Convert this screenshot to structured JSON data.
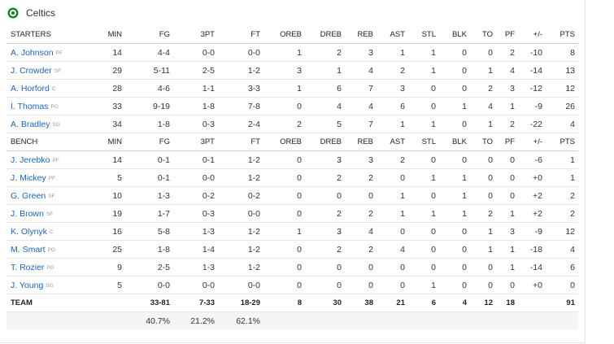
{
  "header": {
    "title": "Celtics"
  },
  "columns": [
    "MIN",
    "FG",
    "3PT",
    "FT",
    "OREB",
    "DREB",
    "REB",
    "AST",
    "STL",
    "BLK",
    "TO",
    "PF",
    "+/-",
    "PTS"
  ],
  "starters": {
    "label": "STARTERS",
    "rows": [
      {
        "name": "A. Johnson",
        "pos": "PF",
        "stats": [
          "14",
          "4-4",
          "0-0",
          "0-0",
          "1",
          "2",
          "3",
          "1",
          "1",
          "0",
          "0",
          "2",
          "-10",
          "8"
        ]
      },
      {
        "name": "J. Crowder",
        "pos": "SF",
        "stats": [
          "29",
          "5-11",
          "2-5",
          "1-2",
          "3",
          "1",
          "4",
          "2",
          "1",
          "0",
          "1",
          "4",
          "-14",
          "13"
        ]
      },
      {
        "name": "A. Horford",
        "pos": "C",
        "stats": [
          "28",
          "4-6",
          "1-1",
          "3-3",
          "1",
          "6",
          "7",
          "3",
          "0",
          "0",
          "2",
          "3",
          "-12",
          "12"
        ]
      },
      {
        "name": "I. Thomas",
        "pos": "PG",
        "stats": [
          "33",
          "9-19",
          "1-8",
          "7-8",
          "0",
          "4",
          "4",
          "6",
          "0",
          "1",
          "4",
          "1",
          "-9",
          "26"
        ]
      },
      {
        "name": "A. Bradley",
        "pos": "SG",
        "stats": [
          "34",
          "1-8",
          "0-3",
          "2-4",
          "2",
          "5",
          "7",
          "1",
          "1",
          "0",
          "1",
          "2",
          "-22",
          "4"
        ]
      }
    ]
  },
  "bench": {
    "label": "BENCH",
    "rows": [
      {
        "name": "J. Jerebko",
        "pos": "PF",
        "stats": [
          "14",
          "0-1",
          "0-1",
          "1-2",
          "0",
          "3",
          "3",
          "2",
          "0",
          "0",
          "0",
          "0",
          "-6",
          "1"
        ]
      },
      {
        "name": "J. Mickey",
        "pos": "PF",
        "stats": [
          "5",
          "0-1",
          "0-0",
          "1-2",
          "0",
          "2",
          "2",
          "0",
          "1",
          "1",
          "0",
          "0",
          "+0",
          "1"
        ]
      },
      {
        "name": "G. Green",
        "pos": "SF",
        "stats": [
          "10",
          "1-3",
          "0-2",
          "0-2",
          "0",
          "0",
          "0",
          "1",
          "0",
          "1",
          "0",
          "0",
          "+2",
          "2"
        ]
      },
      {
        "name": "J. Brown",
        "pos": "SF",
        "stats": [
          "19",
          "1-7",
          "0-3",
          "0-0",
          "0",
          "2",
          "2",
          "1",
          "1",
          "1",
          "2",
          "1",
          "+2",
          "2"
        ]
      },
      {
        "name": "K. Olynyk",
        "pos": "C",
        "stats": [
          "16",
          "5-8",
          "1-3",
          "1-2",
          "1",
          "3",
          "4",
          "0",
          "0",
          "0",
          "1",
          "3",
          "-9",
          "12"
        ]
      },
      {
        "name": "M. Smart",
        "pos": "PG",
        "stats": [
          "25",
          "1-8",
          "1-4",
          "1-2",
          "0",
          "2",
          "2",
          "4",
          "0",
          "0",
          "1",
          "1",
          "-18",
          "4"
        ]
      },
      {
        "name": "T. Rozier",
        "pos": "PG",
        "stats": [
          "9",
          "2-5",
          "1-3",
          "1-2",
          "0",
          "0",
          "0",
          "0",
          "0",
          "0",
          "0",
          "1",
          "-14",
          "6"
        ]
      },
      {
        "name": "J. Young",
        "pos": "SG",
        "stats": [
          "5",
          "0-0",
          "0-0",
          "0-0",
          "0",
          "0",
          "0",
          "0",
          "1",
          "0",
          "0",
          "0",
          "+0",
          "0"
        ]
      }
    ]
  },
  "team": {
    "label": "TEAM",
    "stats": [
      null,
      "33-81",
      "7-33",
      "18-29",
      "8",
      "30",
      "38",
      "21",
      "6",
      "4",
      "12",
      "18",
      null,
      "91"
    ]
  },
  "percentages": {
    "stats": [
      null,
      "40.7%",
      "21.2%",
      "62.1%",
      null,
      null,
      null,
      null,
      null,
      null,
      null,
      null,
      null,
      null
    ]
  }
}
